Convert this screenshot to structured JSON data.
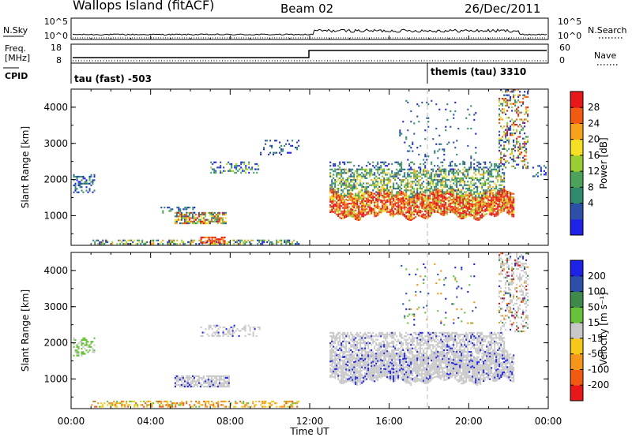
{
  "header": {
    "station": "Wallops Island (fitACF)",
    "beam": "Beam 02",
    "date": "26/Dec/2011"
  },
  "strip": {
    "nsky_label": "N.Sky",
    "nsky_ticks": [
      "10^5",
      "10^0"
    ],
    "nsearch_label": "N.Search",
    "nsearch_ticks": [
      "10^5",
      "10^0"
    ],
    "freq_label_1": "Freq.",
    "freq_label_2": "[MHz]",
    "freq_ticks": [
      "18",
      "8"
    ],
    "nave_label": "Nave",
    "nave_ticks": [
      "60",
      "0"
    ],
    "cpid_label": "CPID",
    "cpid_1": "tau (fast) -503",
    "cpid_2": "themis (tau) 3310"
  },
  "colors": {
    "power": [
      "#1d22e6",
      "#2c4fa8",
      "#2f8a6e",
      "#4ca25a",
      "#9acd32",
      "#f5e026",
      "#f7a21a",
      "#f25a12",
      "#e81818"
    ],
    "velocity": [
      "#1d22e6",
      "#2c4fa8",
      "#3d8a4a",
      "#66c23a",
      "#c8c8c8",
      "#f7c81a",
      "#f7941a",
      "#f25a12",
      "#e81818"
    ],
    "gray": "#c8c8c8"
  },
  "chart_data": [
    {
      "type": "heatmap",
      "panel": "power",
      "xlabel": "",
      "ylabel": "Slant Range [km]",
      "xlim": [
        "00:00",
        "00:00"
      ],
      "ylim": [
        180,
        4500
      ],
      "x_ticks": [
        "00:00",
        "04:00",
        "08:00",
        "12:00",
        "16:00",
        "20:00",
        "00:00"
      ],
      "y_ticks": [
        "1000",
        "2000",
        "3000",
        "4000"
      ],
      "colorbar_label": "Power [dB]",
      "colorbar_ticks": [
        "4",
        "8",
        "12",
        "16",
        "20",
        "24",
        "28"
      ],
      "regions": [
        {
          "t0": 13.0,
          "t1": 22.5,
          "r": "1000-1800",
          "level": "strong (24-30 dB)"
        },
        {
          "t0": 13.0,
          "t1": 22.0,
          "r": "1600-2300",
          "level": "moderate (8-16 dB)"
        },
        {
          "t0": 5.2,
          "t1": 7.8,
          "r": "800-1100",
          "level": "moderate (8-24 dB)"
        },
        {
          "t0": 1.0,
          "t1": 11.5,
          "r": "200-350",
          "level": "weak-moderate (4-16 dB)"
        },
        {
          "t0": 6.5,
          "t1": 7.8,
          "r": "250-450",
          "level": "strong (24-30 dB)"
        },
        {
          "t0": 21.5,
          "t1": 23.0,
          "r": "2000-4500",
          "level": "mixed (4-28 dB)"
        },
        {
          "t0": 0.0,
          "t1": 1.2,
          "r": "1650-2150",
          "level": "weak (8-12 dB)"
        }
      ]
    },
    {
      "type": "heatmap",
      "panel": "velocity",
      "xlabel": "Time UT",
      "ylabel": "Slant Range [km]",
      "xlim": [
        "00:00",
        "00:00"
      ],
      "ylim": [
        180,
        4500
      ],
      "x_ticks": [
        "00:00",
        "04:00",
        "08:00",
        "12:00",
        "16:00",
        "20:00",
        "00:00"
      ],
      "y_ticks": [
        "1000",
        "2000",
        "3000",
        "4000"
      ],
      "colorbar_label": "Velocity [m s⁻¹]",
      "colorbar_ticks": [
        "200",
        "100",
        "50",
        "15",
        "-15",
        "-50",
        "-100",
        "-200"
      ],
      "regions": [
        {
          "t0": 13.0,
          "t1": 22.5,
          "r": "900-2300",
          "level": "ground scatter (gray)"
        },
        {
          "t0": 5.2,
          "t1": 8.0,
          "r": "800-1100",
          "level": "ground scatter (gray)"
        },
        {
          "t0": 1.0,
          "t1": 11.5,
          "r": "200-400",
          "level": "negative (-15 to -100 m/s)"
        }
      ]
    }
  ]
}
